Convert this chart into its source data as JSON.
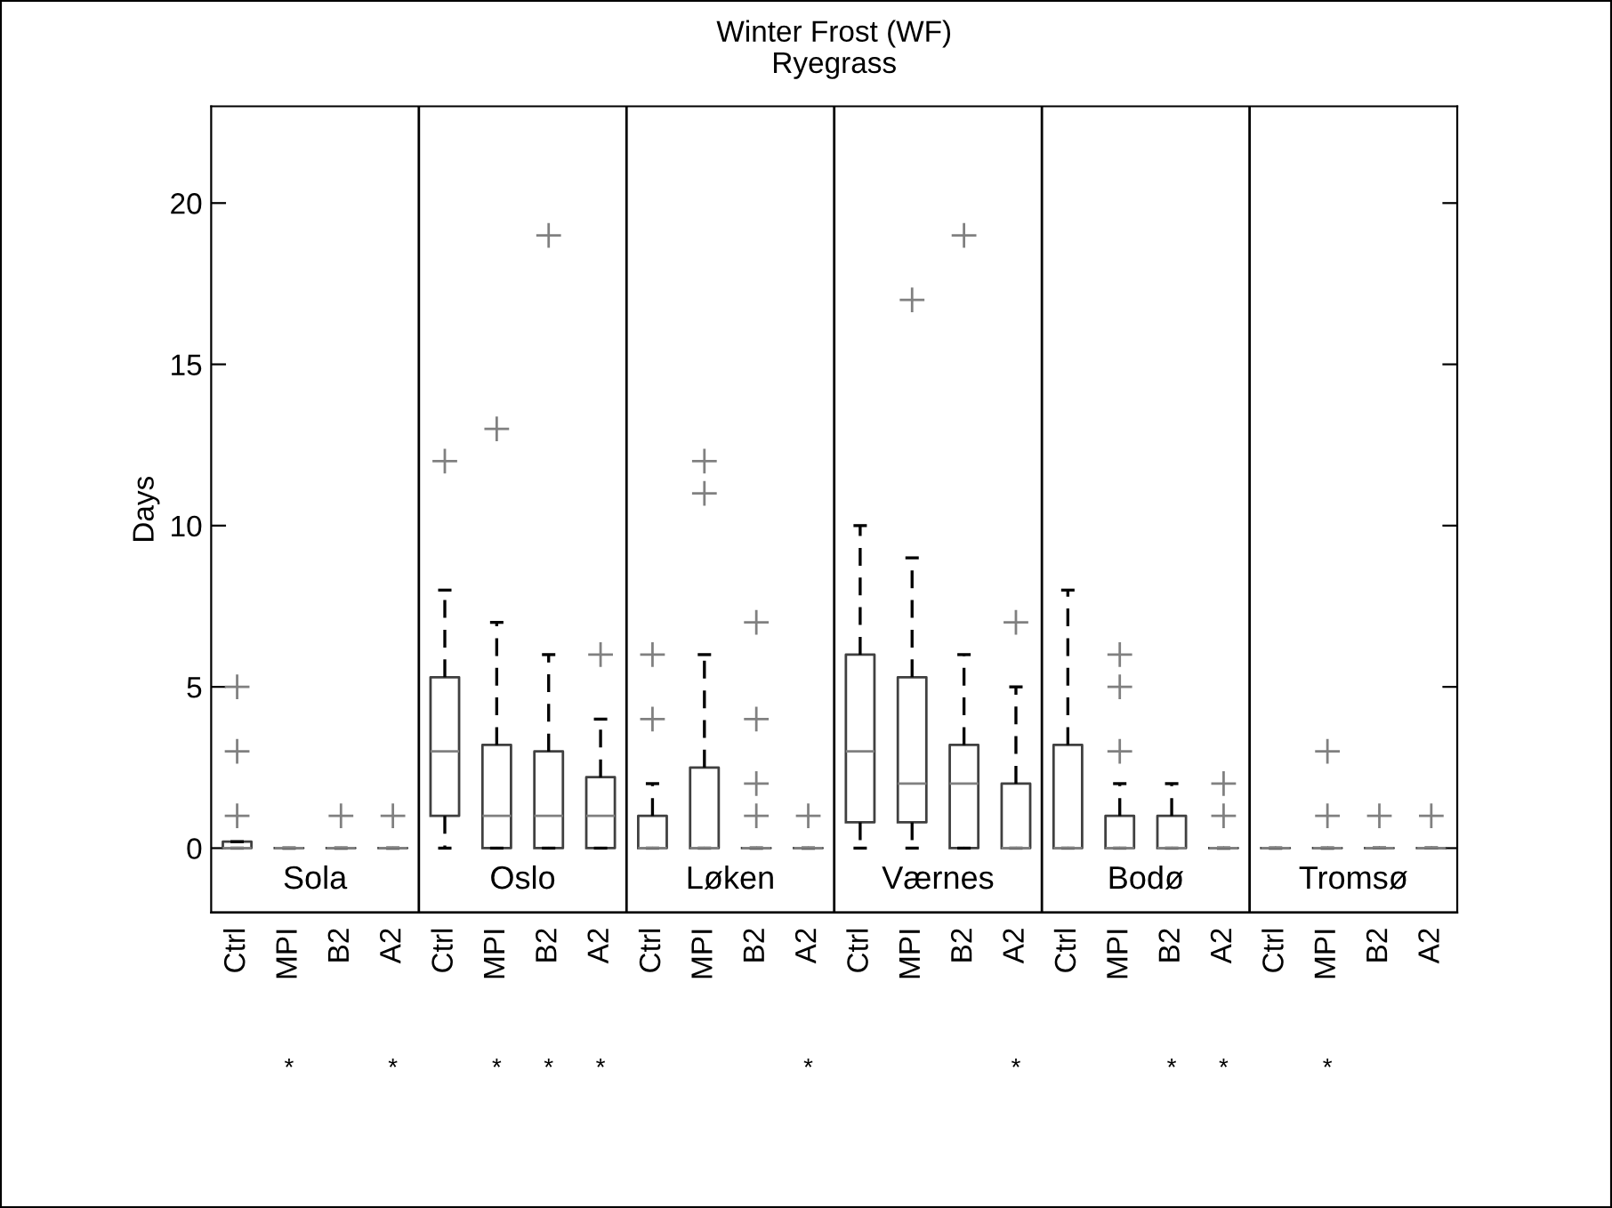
{
  "chart_data": {
    "type": "box",
    "title": "Winter Frost (WF)",
    "subtitle": "Ryegrass",
    "ylabel": "Days",
    "categories": [
      "Ctrl",
      "MPI",
      "B2",
      "A2",
      "Ctrl",
      "MPI",
      "B2",
      "A2",
      "Ctrl",
      "MPI",
      "B2",
      "A2",
      "Ctrl",
      "MPI",
      "B2",
      "A2",
      "Ctrl",
      "MPI",
      "B2",
      "A2",
      "Ctrl",
      "MPI",
      "B2",
      "A2"
    ],
    "ylim": [
      -2,
      23
    ],
    "yticks": [
      0,
      5,
      10,
      15,
      20
    ],
    "boxes": [
      {
        "low": 0,
        "q1": 0,
        "median": 0,
        "q3": 0.2,
        "high": 0.2,
        "outliers": [
          1,
          3,
          5
        ]
      },
      {
        "low": 0,
        "q1": 0,
        "median": 0,
        "q3": 0,
        "high": 0
      },
      {
        "low": 0,
        "q1": 0,
        "median": 0,
        "q3": 0,
        "high": 0,
        "outliers": [
          1
        ]
      },
      {
        "low": 0,
        "q1": 0,
        "median": 0,
        "q3": 0,
        "high": 0,
        "outliers": [
          1
        ]
      },
      {
        "low": 0,
        "q1": 1,
        "median": 3,
        "q3": 5.3,
        "high": 8,
        "outliers": [
          12
        ]
      },
      {
        "low": 0,
        "q1": 0,
        "median": 1,
        "q3": 3.2,
        "high": 7,
        "outliers": [
          13
        ]
      },
      {
        "low": 0,
        "q1": 0,
        "median": 1,
        "q3": 3,
        "high": 6,
        "outliers": [
          19
        ]
      },
      {
        "low": 0,
        "q1": 0,
        "median": 1,
        "q3": 2.2,
        "high": 4,
        "outliers": [
          6
        ]
      },
      {
        "low": 0,
        "q1": 0,
        "median": 0,
        "q3": 1,
        "high": 2,
        "outliers": [
          4,
          6
        ]
      },
      {
        "low": 0,
        "q1": 0,
        "median": 0,
        "q3": 2.5,
        "high": 6,
        "outliers": [
          11,
          12
        ]
      },
      {
        "low": 0,
        "q1": 0,
        "median": 0,
        "q3": 0,
        "high": 0,
        "outliers": [
          1,
          2,
          4,
          7
        ]
      },
      {
        "low": 0,
        "q1": 0,
        "median": 0,
        "q3": 0,
        "high": 0,
        "outliers": [
          1
        ]
      },
      {
        "low": 0,
        "q1": 0.8,
        "median": 3,
        "q3": 6,
        "high": 10
      },
      {
        "low": 0,
        "q1": 0.8,
        "median": 2,
        "q3": 5.3,
        "high": 9,
        "outliers": [
          17
        ]
      },
      {
        "low": 0,
        "q1": 0,
        "median": 2,
        "q3": 3.2,
        "high": 6,
        "outliers": [
          19
        ]
      },
      {
        "low": 0,
        "q1": 0,
        "median": 0,
        "q3": 2,
        "high": 5,
        "outliers": [
          7
        ]
      },
      {
        "low": 0,
        "q1": 0,
        "median": 0,
        "q3": 3.2,
        "high": 8
      },
      {
        "low": 0,
        "q1": 0,
        "median": 0,
        "q3": 1,
        "high": 2,
        "outliers": [
          3,
          5,
          6
        ]
      },
      {
        "low": 0,
        "q1": 0,
        "median": 0,
        "q3": 1,
        "high": 2
      },
      {
        "low": 0,
        "q1": 0,
        "median": 0,
        "q3": 0,
        "high": 0,
        "outliers": [
          1,
          2
        ]
      },
      {
        "low": 0,
        "q1": 0,
        "median": 0,
        "q3": 0,
        "high": 0
      },
      {
        "low": 0,
        "q1": 0,
        "median": 0,
        "q3": 0,
        "high": 0,
        "outliers": [
          1,
          3
        ]
      },
      {
        "low": 0,
        "q1": 0,
        "median": 0,
        "q3": 0,
        "high": 0,
        "outliers": [
          1
        ]
      },
      {
        "low": 0,
        "q1": 0,
        "median": 0,
        "q3": 0,
        "high": 0,
        "outliers": [
          1
        ]
      }
    ],
    "annotations": [
      "Sola",
      "Oslo",
      "Løken",
      "Værnes",
      "Bodø",
      "Tromsø",
      "*",
      "*",
      "*",
      "*",
      "*",
      "*",
      "*",
      "*",
      "*",
      "*"
    ]
  }
}
